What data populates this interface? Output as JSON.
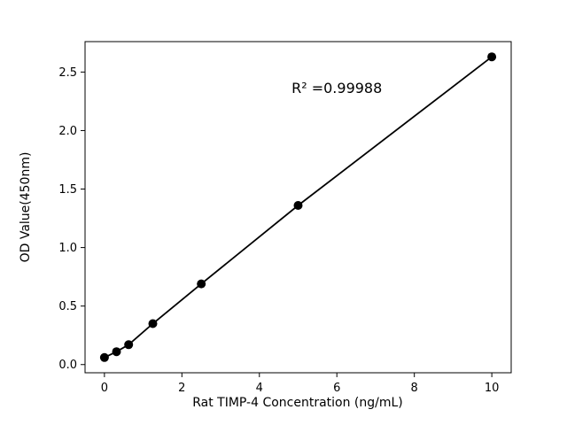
{
  "chart_data": {
    "type": "scatter",
    "title": "",
    "xlabel": "Rat TIMP-4 Concentration (ng/mL)",
    "ylabel": "OD Value(450nm)",
    "annotation": "R² =0.99988",
    "annotation_pos": [
      6.0,
      2.36
    ],
    "x": [
      0,
      0.3125,
      0.625,
      1.25,
      2.5,
      5,
      10
    ],
    "y": [
      0.06,
      0.11,
      0.17,
      0.35,
      0.69,
      1.36,
      2.63
    ],
    "line_through_points": true,
    "xlim": [
      -0.5,
      10.5
    ],
    "ylim": [
      -0.07,
      2.76
    ],
    "xticks": [
      {
        "v": 0,
        "label": "0"
      },
      {
        "v": 2,
        "label": "2"
      },
      {
        "v": 4,
        "label": "4"
      },
      {
        "v": 6,
        "label": "6"
      },
      {
        "v": 8,
        "label": "8"
      },
      {
        "v": 10,
        "label": "10"
      }
    ],
    "yticks": [
      {
        "v": 0,
        "label": "0.0"
      },
      {
        "v": 0.5,
        "label": "0.5"
      },
      {
        "v": 1,
        "label": "1.0"
      },
      {
        "v": 1.5,
        "label": "1.5"
      },
      {
        "v": 2,
        "label": "2.0"
      },
      {
        "v": 2.5,
        "label": "2.5"
      }
    ],
    "colors": {
      "marker": "#000000",
      "line": "#000000",
      "spine": "#000000",
      "background": "#ffffff"
    },
    "legend": null,
    "grid": false
  }
}
